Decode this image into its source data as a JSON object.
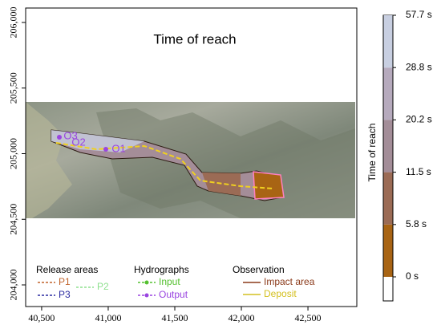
{
  "chart_data": {
    "type": "map",
    "title": "Time of reach",
    "xlim": [
      40380,
      42867
    ],
    "ylim": [
      203835,
      206110
    ],
    "xticks": [
      {
        "value": 40500,
        "label": "40,500"
      },
      {
        "value": 41000,
        "label": "41,000"
      },
      {
        "value": 41500,
        "label": "41,500"
      },
      {
        "value": 42000,
        "label": "42,000"
      },
      {
        "value": 42500,
        "label": "42,500"
      }
    ],
    "yticks": [
      {
        "value": 204000,
        "label": "204,000"
      },
      {
        "value": 204500,
        "label": "204,500"
      },
      {
        "value": 205000,
        "label": "205,000"
      },
      {
        "value": 205500,
        "label": "205,500"
      },
      {
        "value": 206000,
        "label": "206,000"
      }
    ],
    "map_labels": [
      "O1",
      "O2",
      "O3"
    ],
    "legend": [
      {
        "title": "Release areas",
        "items": [
          {
            "name": "P1",
            "color": "#c0622a"
          },
          {
            "name": "P3",
            "color": "#2a2aa0"
          },
          {
            "name": "P2",
            "color": "#8fe08f"
          }
        ]
      },
      {
        "title": "Hydrographs",
        "items": [
          {
            "name": "Input",
            "color": "#55c030"
          },
          {
            "name": "Output",
            "color": "#9a45e0"
          }
        ]
      },
      {
        "title": "Observation",
        "items": [
          {
            "name": "Impact area",
            "color": "#8b3a1a"
          },
          {
            "name": "Deposit",
            "color": "#d4c020"
          }
        ]
      }
    ],
    "colorbar": {
      "title": "Time of reach",
      "ticks": [
        {
          "value": 0,
          "label": "0 s"
        },
        {
          "value": 5.8,
          "label": "5.8 s"
        },
        {
          "value": 11.5,
          "label": "11.5 s"
        },
        {
          "value": 20.2,
          "label": "20.2 s"
        },
        {
          "value": 28.8,
          "label": "28.8 s"
        },
        {
          "value": 57.7,
          "label": "57.7 s"
        }
      ],
      "colors": [
        "#a86414",
        "#9b6b55",
        "#a38d98",
        "#b6aabd",
        "#c8cfe1"
      ]
    }
  }
}
